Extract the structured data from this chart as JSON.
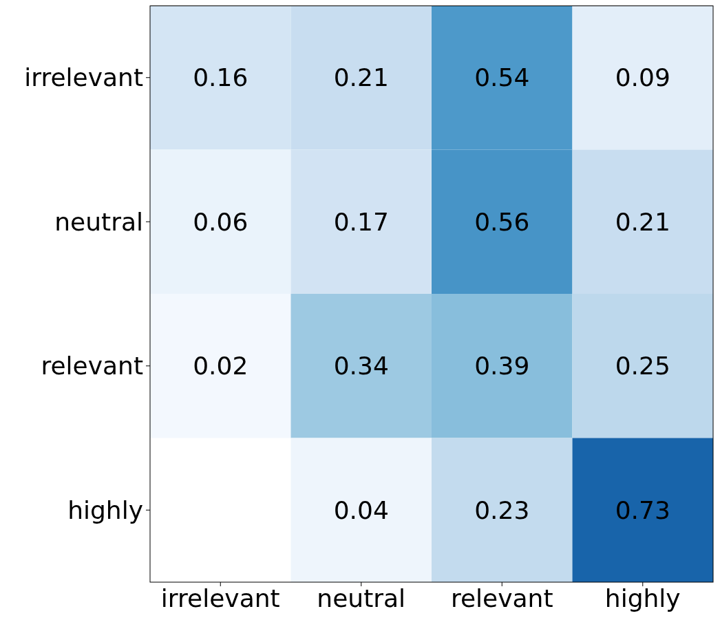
{
  "chart_data": {
    "type": "heatmap",
    "data_labels": true,
    "categories": [
      "irrelevant",
      "neutral",
      "relevant",
      "highly"
    ],
    "y_categories": [
      "irrelevant",
      "neutral",
      "relevant",
      "highly"
    ],
    "cells": [
      [
        0.16,
        0.21,
        0.54,
        0.09
      ],
      [
        0.06,
        0.17,
        0.56,
        0.21
      ],
      [
        0.02,
        0.34,
        0.39,
        0.25
      ],
      [
        null,
        0.04,
        0.23,
        0.73
      ]
    ]
  }
}
